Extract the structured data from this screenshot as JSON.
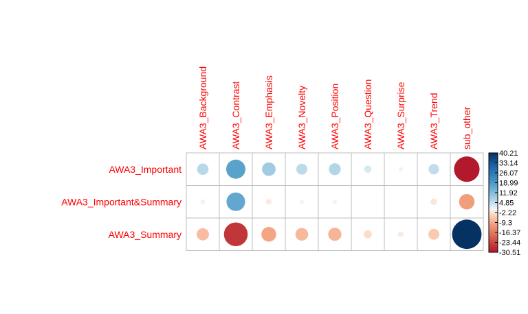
{
  "chart_data": {
    "type": "heatmap",
    "rows": [
      "AWA3_Important",
      "AWA3_Important&Summary",
      "AWA3_Summary"
    ],
    "columns": [
      "AWA3_Background",
      "AWA3_Contrast",
      "AWA3_Emphasis",
      "AWA3_Novelty",
      "AWA3_Position",
      "AWA3_Question",
      "AWA3_Surprise",
      "AWA3_Trend",
      "sub_other"
    ],
    "values": [
      [
        6.0,
        17.0,
        8.5,
        5.5,
        6.5,
        2.5,
        0.8,
        5.0,
        -30.0
      ],
      [
        -1.0,
        16.0,
        -1.5,
        -0.7,
        -0.8,
        0.0,
        0.0,
        -2.0,
        -11.0
      ],
      [
        -7.0,
        -26.0,
        -10.0,
        -7.5,
        -8.0,
        -3.0,
        -1.5,
        -5.5,
        40.0
      ]
    ],
    "colorbar": {
      "min": -30.51,
      "max": 40.21,
      "tick_labels": [
        "40.21",
        "33.14",
        "26.07",
        "18.99",
        "11.92",
        "4.85",
        "-2.22",
        "-9.3",
        "-16.37",
        "-23.44",
        "-30.51"
      ]
    },
    "colors": {
      "label": "#ff0000",
      "grid": "#bebebe",
      "neg_end": "#67001f",
      "neg_mid": "#d6604d",
      "neutral": "#f7f7f7",
      "pos_mid": "#4393c3",
      "pos_end": "#053061"
    }
  }
}
